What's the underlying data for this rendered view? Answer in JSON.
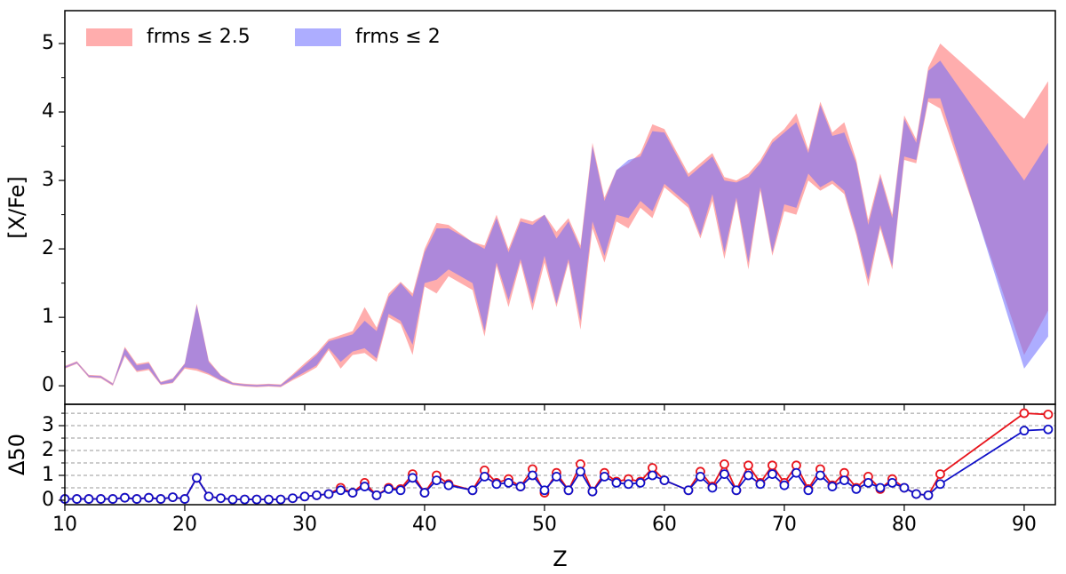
{
  "chart_data": [
    {
      "type": "band",
      "ylabel": "[X/Fe]",
      "x": [
        10,
        11,
        12,
        13,
        14,
        15,
        16,
        17,
        18,
        19,
        20,
        21,
        22,
        23,
        24,
        25,
        26,
        27,
        28,
        29,
        30,
        31,
        32,
        33,
        34,
        35,
        36,
        37,
        38,
        39,
        40,
        41,
        42,
        44,
        45,
        46,
        47,
        48,
        49,
        50,
        51,
        52,
        53,
        54,
        55,
        56,
        57,
        58,
        59,
        60,
        62,
        63,
        64,
        65,
        66,
        67,
        68,
        69,
        70,
        71,
        72,
        73,
        74,
        75,
        76,
        77,
        78,
        79,
        80,
        81,
        82,
        83,
        90,
        92
      ],
      "xlim": [
        10,
        92.6
      ],
      "xticks": [
        10,
        20,
        30,
        40,
        50,
        60,
        70,
        80,
        90
      ],
      "ylim": [
        -0.27,
        5.48
      ],
      "yticks": [
        0,
        1,
        2,
        3,
        4,
        5
      ],
      "minor_yticks": [
        0.5,
        1.5,
        2.5,
        3.5,
        4.5
      ],
      "series": [
        {
          "name": "frms ≤ 2.5",
          "color": "#ff6a6a",
          "lower": [
            0.25,
            0.32,
            0.12,
            0.11,
            0.0,
            0.43,
            0.2,
            0.23,
            0.01,
            0.04,
            0.25,
            0.22,
            0.16,
            0.07,
            0.01,
            -0.01,
            -0.02,
            -0.01,
            -0.02,
            0.08,
            0.17,
            0.27,
            0.52,
            0.25,
            0.45,
            0.48,
            0.35,
            1.0,
            0.9,
            0.45,
            1.45,
            1.35,
            1.6,
            1.4,
            0.72,
            1.75,
            1.15,
            1.8,
            1.1,
            1.8,
            1.15,
            1.8,
            0.82,
            2.3,
            1.8,
            2.4,
            2.3,
            2.6,
            2.45,
            2.9,
            2.6,
            2.15,
            2.7,
            1.85,
            2.7,
            1.7,
            2.85,
            1.9,
            2.55,
            2.5,
            3.0,
            2.85,
            2.95,
            2.8,
            2.2,
            1.45,
            2.3,
            1.7,
            3.3,
            3.25,
            4.15,
            4.05,
            0.45,
            1.1
          ],
          "upper": [
            0.29,
            0.36,
            0.16,
            0.15,
            0.04,
            0.57,
            0.32,
            0.35,
            0.06,
            0.11,
            0.33,
            1.2,
            0.37,
            0.16,
            0.05,
            0.03,
            0.02,
            0.03,
            0.02,
            0.17,
            0.33,
            0.48,
            0.68,
            0.74,
            0.8,
            1.15,
            0.85,
            1.35,
            1.52,
            1.35,
            2.0,
            2.38,
            2.35,
            2.1,
            2.05,
            2.5,
            2.0,
            2.45,
            2.4,
            2.5,
            2.25,
            2.45,
            2.05,
            3.55,
            2.75,
            3.15,
            3.25,
            3.4,
            3.82,
            3.75,
            3.1,
            3.25,
            3.4,
            3.05,
            3.0,
            3.1,
            3.3,
            3.6,
            3.75,
            3.98,
            3.45,
            4.15,
            3.7,
            3.85,
            3.3,
            2.42,
            3.1,
            2.5,
            3.95,
            3.6,
            4.65,
            5.0,
            3.9,
            4.45
          ]
        },
        {
          "name": "frms ≤ 2",
          "color": "#6a6aff",
          "lower": [
            0.26,
            0.33,
            0.13,
            0.12,
            0.01,
            0.45,
            0.22,
            0.25,
            0.02,
            0.05,
            0.27,
            0.25,
            0.18,
            0.08,
            0.02,
            0.0,
            -0.01,
            0.0,
            -0.01,
            0.1,
            0.2,
            0.3,
            0.55,
            0.35,
            0.5,
            0.55,
            0.4,
            1.05,
            0.95,
            0.6,
            1.5,
            1.55,
            1.7,
            1.5,
            0.8,
            1.8,
            1.25,
            1.85,
            1.2,
            1.9,
            1.2,
            1.85,
            0.95,
            2.4,
            1.9,
            2.5,
            2.45,
            2.7,
            2.55,
            2.95,
            2.65,
            2.2,
            2.8,
            1.95,
            2.75,
            1.8,
            2.9,
            1.95,
            2.65,
            2.6,
            3.1,
            2.9,
            3.0,
            2.85,
            2.25,
            1.55,
            2.35,
            1.75,
            3.35,
            3.3,
            4.2,
            4.2,
            0.25,
            0.72
          ],
          "upper": [
            0.28,
            0.35,
            0.15,
            0.14,
            0.03,
            0.55,
            0.3,
            0.33,
            0.05,
            0.1,
            0.32,
            1.18,
            0.35,
            0.15,
            0.04,
            0.02,
            0.01,
            0.02,
            0.01,
            0.15,
            0.3,
            0.45,
            0.65,
            0.7,
            0.75,
            0.95,
            0.8,
            1.3,
            1.5,
            1.3,
            1.95,
            2.3,
            2.3,
            2.1,
            2.0,
            2.45,
            1.95,
            2.4,
            2.35,
            2.5,
            2.15,
            2.4,
            2.0,
            3.5,
            2.7,
            3.15,
            3.3,
            3.35,
            3.72,
            3.7,
            3.05,
            3.2,
            3.35,
            3.0,
            2.97,
            3.05,
            3.25,
            3.55,
            3.7,
            3.85,
            3.4,
            4.1,
            3.65,
            3.7,
            3.25,
            2.35,
            3.05,
            2.45,
            3.9,
            3.55,
            4.6,
            4.75,
            3.0,
            3.55
          ]
        }
      ]
    },
    {
      "type": "line",
      "xlabel": "Z",
      "ylabel": "Δ50",
      "x": [
        10,
        11,
        12,
        13,
        14,
        15,
        16,
        17,
        18,
        19,
        20,
        21,
        22,
        23,
        24,
        25,
        26,
        27,
        28,
        29,
        30,
        31,
        32,
        33,
        34,
        35,
        36,
        37,
        38,
        39,
        40,
        41,
        42,
        44,
        45,
        46,
        47,
        48,
        49,
        50,
        51,
        52,
        53,
        54,
        55,
        56,
        57,
        58,
        59,
        60,
        62,
        63,
        64,
        65,
        66,
        67,
        68,
        69,
        70,
        71,
        72,
        73,
        74,
        75,
        76,
        77,
        78,
        79,
        80,
        81,
        82,
        83,
        90,
        92
      ],
      "xlim": [
        10,
        92.6
      ],
      "xticks": [
        10,
        20,
        30,
        40,
        50,
        60,
        70,
        80,
        90
      ],
      "ylim": [
        -0.18,
        3.86
      ],
      "yticks": [
        0,
        1,
        2,
        3
      ],
      "minor_yticks": [
        0.5,
        1.5,
        2.5,
        3.5
      ],
      "series": [
        {
          "color": "#e8141c",
          "values": [
            0.05,
            0.05,
            0.05,
            0.05,
            0.05,
            0.1,
            0.05,
            0.1,
            0.05,
            0.12,
            0.05,
            0.9,
            0.15,
            0.08,
            0.03,
            0.03,
            0.03,
            0.03,
            0.03,
            0.08,
            0.15,
            0.2,
            0.25,
            0.5,
            0.3,
            0.7,
            0.2,
            0.5,
            0.45,
            1.05,
            0.3,
            1.0,
            0.65,
            0.4,
            1.2,
            0.7,
            0.85,
            0.55,
            1.25,
            0.3,
            1.1,
            0.4,
            1.45,
            0.35,
            1.1,
            0.75,
            0.85,
            0.75,
            1.3,
            0.8,
            0.4,
            1.15,
            0.55,
            1.45,
            0.4,
            1.4,
            0.7,
            1.4,
            0.7,
            1.4,
            0.45,
            1.25,
            0.6,
            1.1,
            0.5,
            0.95,
            0.45,
            0.85,
            0.5,
            0.25,
            0.2,
            1.05,
            3.5,
            3.45
          ]
        },
        {
          "color": "#1010c8",
          "values": [
            0.05,
            0.05,
            0.05,
            0.05,
            0.05,
            0.1,
            0.05,
            0.1,
            0.05,
            0.12,
            0.05,
            0.9,
            0.15,
            0.08,
            0.03,
            0.03,
            0.03,
            0.03,
            0.03,
            0.08,
            0.15,
            0.2,
            0.25,
            0.4,
            0.3,
            0.55,
            0.2,
            0.45,
            0.4,
            0.9,
            0.3,
            0.8,
            0.6,
            0.4,
            0.95,
            0.65,
            0.7,
            0.55,
            1.0,
            0.4,
            0.95,
            0.4,
            1.15,
            0.35,
            0.95,
            0.7,
            0.65,
            0.7,
            1.0,
            0.8,
            0.4,
            0.95,
            0.5,
            1.05,
            0.4,
            1.0,
            0.65,
            1.05,
            0.6,
            1.1,
            0.4,
            1.0,
            0.55,
            0.8,
            0.45,
            0.7,
            0.5,
            0.7,
            0.5,
            0.25,
            0.2,
            0.65,
            2.8,
            2.85
          ]
        }
      ]
    }
  ]
}
